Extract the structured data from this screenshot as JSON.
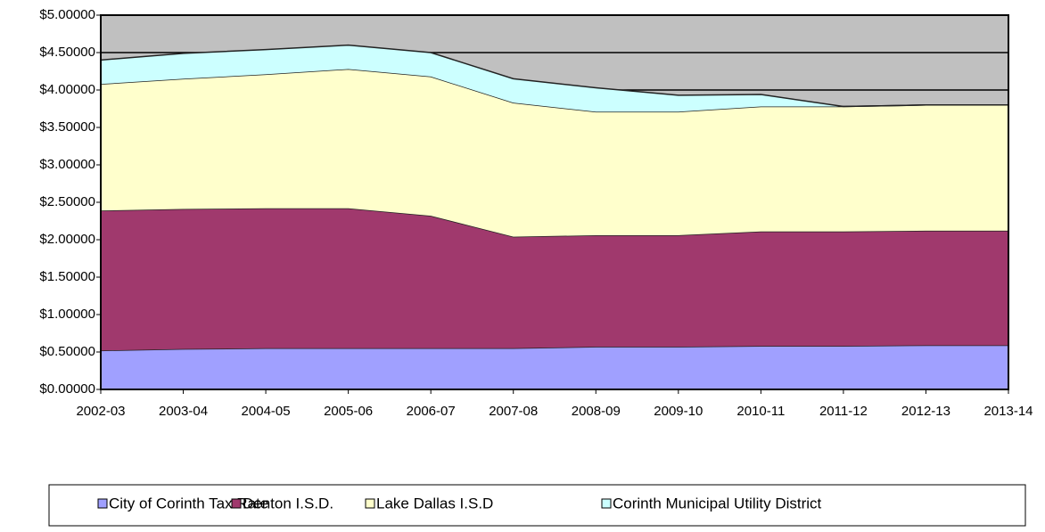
{
  "chart_data": {
    "type": "stacked-area",
    "categories": [
      "2002-03",
      "2003-04",
      "2004-05",
      "2005-06",
      "2006-07",
      "2007-08",
      "2008-09",
      "2009-10",
      "2010-11",
      "2011-12",
      "2012-13",
      "2013-14"
    ],
    "series": [
      {
        "name": "City of Corinth Tax Rate",
        "color": "#a0a0ff",
        "values": [
          0.52,
          0.54,
          0.55,
          0.55,
          0.55,
          0.55,
          0.57,
          0.57,
          0.58,
          0.58,
          0.59,
          0.59
        ]
      },
      {
        "name": "Denton I.S.D.",
        "color": "#a0396d",
        "values": [
          1.87,
          1.87,
          1.87,
          1.87,
          1.77,
          1.49,
          1.49,
          1.49,
          1.53,
          1.53,
          1.53,
          1.53
        ]
      },
      {
        "name": "Lake Dallas I.S.D",
        "color": "#ffffcc",
        "values": [
          1.69,
          1.74,
          1.79,
          1.86,
          1.86,
          1.79,
          1.65,
          1.65,
          1.67,
          1.67,
          1.68,
          1.68
        ]
      },
      {
        "name": "Corinth Municipal Utility District",
        "color": "#ccffff",
        "values": [
          0.32,
          0.34,
          0.33,
          0.32,
          0.32,
          0.32,
          0.32,
          0.22,
          0.16,
          0,
          0,
          0
        ]
      }
    ],
    "ylim": [
      0,
      5
    ],
    "yticks": [
      {
        "value": 0,
        "label": "$0.00000"
      },
      {
        "value": 0.5,
        "label": "$0.50000"
      },
      {
        "value": 1,
        "label": "$1.00000"
      },
      {
        "value": 1.5,
        "label": "$1.50000"
      },
      {
        "value": 2,
        "label": "$2.00000"
      },
      {
        "value": 2.5,
        "label": "$2.50000"
      },
      {
        "value": 3,
        "label": "$3.00000"
      },
      {
        "value": 3.5,
        "label": "$3.50000"
      },
      {
        "value": 4,
        "label": "$4.00000"
      },
      {
        "value": 4.5,
        "label": "$4.50000"
      },
      {
        "value": 5,
        "label": "$5.00000"
      }
    ],
    "grid": true,
    "legend": "bottom",
    "background": "#c0c0c0"
  }
}
